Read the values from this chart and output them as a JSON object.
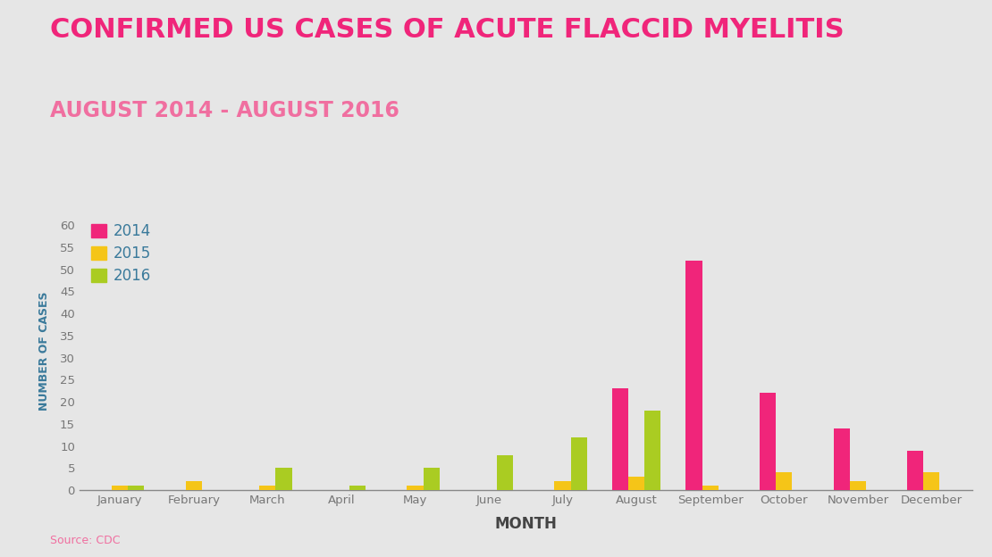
{
  "title_line1": "CONFIRMED US CASES OF ACUTE FLACCID MYELITIS",
  "title_line2": "AUGUST 2014 - AUGUST 2016",
  "title_color": "#F0257A",
  "subtitle_color": "#F06FA0",
  "source_text": "Source: CDC",
  "source_color": "#F06FA0",
  "xlabel": "MONTH",
  "ylabel": "NUMBER OF CASES",
  "background_color": "#E6E6E6",
  "plot_bg_color": "#E6E6E6",
  "months": [
    "January",
    "February",
    "March",
    "April",
    "May",
    "June",
    "July",
    "August",
    "September",
    "October",
    "November",
    "December"
  ],
  "series": {
    "2014": [
      0,
      0,
      0,
      0,
      0,
      0,
      0,
      23,
      52,
      22,
      14,
      9
    ],
    "2015": [
      1,
      2,
      1,
      0,
      1,
      0,
      2,
      3,
      1,
      4,
      2,
      4
    ],
    "2016": [
      1,
      0,
      5,
      1,
      5,
      8,
      12,
      18,
      0,
      0,
      0,
      0
    ]
  },
  "colors": {
    "2014": "#F0257A",
    "2015": "#F5C518",
    "2016": "#AACC22"
  },
  "yticks": [
    0,
    5,
    10,
    15,
    20,
    25,
    30,
    35,
    40,
    45,
    50,
    55,
    60
  ],
  "ylim": [
    0,
    63
  ],
  "axis_label_color": "#3A7A9B",
  "tick_label_color": "#777777",
  "xlabel_color": "#444444",
  "ylabel_color": "#3A7A9B",
  "legend_loc": "upper left",
  "title_fontsize": 22,
  "subtitle_fontsize": 17,
  "source_fontsize": 9,
  "bar_width": 0.22
}
